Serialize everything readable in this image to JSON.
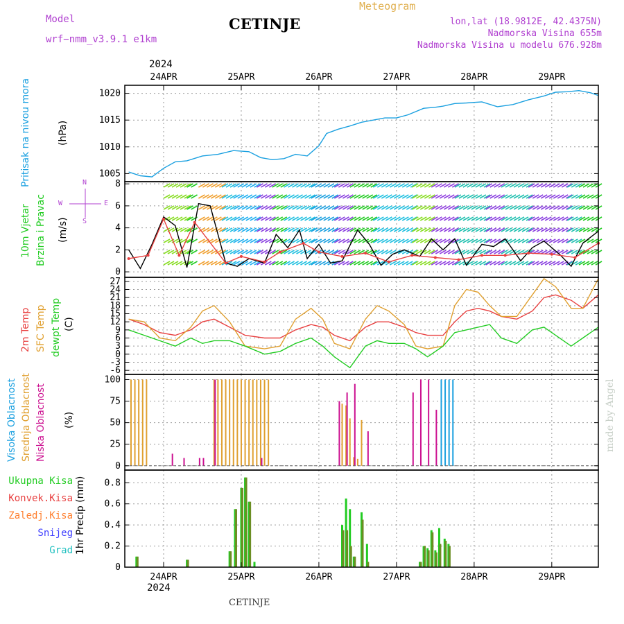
{
  "header": {
    "model_label": "Model",
    "model_name": "wrf−nmm_v3.9.1  e1km",
    "station": "CETINJE",
    "meteogram_label": "Meteogram",
    "lonlat": "lon,lat (18.9812E, 42.4375N)",
    "elevation": "Nadmorska Visina 655m",
    "model_elevation": "Nadmorska Visina u modelu 676.928m",
    "footer_station": "CETINJE",
    "watermark": "made by Angel",
    "year_top": "2024",
    "year_bottom": "2024"
  },
  "colors": {
    "pressure": "#1aa0e0",
    "wind_label": "#22cc22",
    "t2m": "#e84040",
    "sfc": "#e0a030",
    "dewpt": "#22cc22",
    "high_cloud": "#1aa0e0",
    "mid_cloud": "#e0a030",
    "low_cloud": "#cc1090",
    "total_precip": "#22cc22",
    "conv_precip": "#e84040",
    "frozen_precip": "#ff8030",
    "snow": "#4040ff",
    "hail": "#20c0c0",
    "model_label": "#b040d0"
  },
  "chart_data": [
    {
      "type": "line",
      "panel": "pressure",
      "ylabel": "Pritisak na nivou mora",
      "units": "(hPa)",
      "ylim": [
        1003.5,
        1021.5
      ],
      "yticks": [
        1005,
        1010,
        1015,
        1020
      ],
      "x_unit": "days since 2024-04-23 00Z",
      "series": [
        {
          "name": "Pritisak na nivou mora",
          "color": "#1aa0e0",
          "x": [
            0.55,
            0.7,
            0.85,
            1.0,
            1.15,
            1.3,
            1.5,
            1.7,
            1.9,
            2.1,
            2.25,
            2.4,
            2.55,
            2.7,
            2.85,
            3.0,
            3.1,
            3.25,
            3.4,
            3.55,
            3.7,
            3.85,
            4.0,
            4.15,
            4.35,
            4.5,
            4.6,
            4.75,
            4.9,
            5.1,
            5.3,
            5.5,
            5.7,
            5.9,
            6.05,
            6.2,
            6.35,
            6.5,
            6.6
          ],
          "values": [
            1005.3,
            1004.6,
            1004.4,
            1006.0,
            1007.2,
            1007.4,
            1008.3,
            1008.6,
            1009.3,
            1009.1,
            1008.0,
            1007.6,
            1007.8,
            1008.6,
            1008.3,
            1010.2,
            1012.5,
            1013.3,
            1013.9,
            1014.6,
            1015.0,
            1015.4,
            1015.4,
            1016.0,
            1017.2,
            1017.4,
            1017.6,
            1018.1,
            1018.2,
            1018.4,
            1017.5,
            1017.9,
            1018.8,
            1019.5,
            1020.2,
            1020.3,
            1020.5,
            1020.1,
            1019.6
          ]
        }
      ]
    },
    {
      "type": "line",
      "panel": "wind",
      "ylabel": "10m Vjetar",
      "ylabel2": "Brzina i Pravac",
      "units": "(m/s)",
      "compass": {
        "n": "N",
        "w": "W",
        "e": "E",
        "s": "S"
      },
      "ylim": [
        -0.5,
        8.2
      ],
      "yticks": [
        0,
        2,
        4,
        6,
        8
      ],
      "series": [
        {
          "name": "speed",
          "color": "#000000",
          "x": [
            0.55,
            0.7,
            0.85,
            1.0,
            1.15,
            1.3,
            1.45,
            1.6,
            1.8,
            1.95,
            2.1,
            2.3,
            2.45,
            2.6,
            2.75,
            2.85,
            3.0,
            3.15,
            3.3,
            3.5,
            3.65,
            3.8,
            3.95,
            4.1,
            4.3,
            4.45,
            4.6,
            4.75,
            4.9,
            5.1,
            5.25,
            5.4,
            5.6,
            5.75,
            5.9,
            6.1,
            6.25,
            6.4,
            6.6
          ],
          "values": [
            2.0,
            0.3,
            2.5,
            5.0,
            4.2,
            0.4,
            6.2,
            6.0,
            0.8,
            0.5,
            1.2,
            0.8,
            3.4,
            2.2,
            3.8,
            1.2,
            2.5,
            0.8,
            1.0,
            3.8,
            2.5,
            0.6,
            1.6,
            2.0,
            1.4,
            3.0,
            2.0,
            3.0,
            0.6,
            2.5,
            2.3,
            3.0,
            1.0,
            2.2,
            2.8,
            1.6,
            0.5,
            2.6,
            3.7
          ]
        },
        {
          "name": "gust",
          "color": "#e84040",
          "x": [
            0.55,
            0.8,
            1.0,
            1.2,
            1.4,
            1.8,
            2.0,
            2.3,
            2.5,
            2.8,
            3.0,
            3.3,
            3.6,
            3.9,
            4.2,
            4.5,
            4.8,
            5.1,
            5.4,
            5.7,
            6.0,
            6.3,
            6.6
          ],
          "values": [
            1.2,
            1.5,
            4.8,
            1.5,
            4.5,
            0.8,
            1.4,
            0.9,
            1.8,
            2.6,
            1.8,
            1.4,
            1.7,
            0.9,
            1.5,
            1.3,
            1.1,
            1.5,
            1.5,
            1.7,
            1.6,
            1.3,
            2.6
          ]
        }
      ]
    },
    {
      "type": "line",
      "panel": "temperature",
      "ylabels": [
        "2m Temp",
        "SFC Temp",
        "dewpt Temp"
      ],
      "units": "(C)",
      "ylim": [
        -7.5,
        28.5
      ],
      "yticks": [
        -6,
        -3,
        0,
        3,
        6,
        9,
        12,
        15,
        18,
        21,
        24,
        27
      ],
      "series": [
        {
          "name": "2m Temp",
          "color": "#e84040",
          "x": [
            0.55,
            0.75,
            0.95,
            1.15,
            1.35,
            1.5,
            1.65,
            1.85,
            2.05,
            2.3,
            2.5,
            2.7,
            2.9,
            3.05,
            3.2,
            3.4,
            3.6,
            3.75,
            3.9,
            4.1,
            4.25,
            4.4,
            4.6,
            4.75,
            4.9,
            5.05,
            5.2,
            5.35,
            5.55,
            5.75,
            5.9,
            6.05,
            6.25,
            6.4,
            6.6
          ],
          "values": [
            13,
            11,
            8,
            7,
            9,
            12,
            13,
            10,
            7,
            6,
            6,
            9,
            11,
            10,
            7,
            5,
            10,
            12,
            12,
            10,
            8,
            7,
            7,
            12,
            16,
            17,
            16,
            14,
            13,
            16,
            21,
            22,
            20,
            17,
            22
          ]
        },
        {
          "name": "SFC Temp",
          "color": "#e0a030",
          "x": [
            0.55,
            0.75,
            0.95,
            1.15,
            1.35,
            1.5,
            1.65,
            1.85,
            2.05,
            2.3,
            2.5,
            2.7,
            2.9,
            3.05,
            3.2,
            3.4,
            3.6,
            3.75,
            3.9,
            4.1,
            4.25,
            4.4,
            4.6,
            4.75,
            4.9,
            5.05,
            5.2,
            5.35,
            5.55,
            5.75,
            5.9,
            6.05,
            6.25,
            6.4,
            6.6
          ],
          "values": [
            13,
            12,
            6,
            5,
            10,
            16,
            18,
            12,
            3,
            2,
            3,
            13,
            17,
            13,
            4,
            2,
            13,
            18,
            16,
            11,
            3,
            2,
            3,
            18,
            24,
            23,
            18,
            14,
            14,
            22,
            28,
            25,
            17,
            17,
            28
          ]
        },
        {
          "name": "dewpt Temp",
          "color": "#22cc22",
          "x": [
            0.55,
            0.75,
            0.95,
            1.15,
            1.35,
            1.5,
            1.65,
            1.85,
            2.05,
            2.3,
            2.5,
            2.7,
            2.9,
            3.05,
            3.2,
            3.4,
            3.6,
            3.75,
            3.9,
            4.1,
            4.25,
            4.4,
            4.6,
            4.75,
            4.9,
            5.05,
            5.2,
            5.35,
            5.55,
            5.75,
            5.9,
            6.05,
            6.25,
            6.4,
            6.6
          ],
          "values": [
            9,
            7,
            5,
            3,
            6,
            4,
            5,
            5,
            3,
            0,
            1,
            4,
            6,
            3,
            -1,
            -5,
            3,
            5,
            4,
            4,
            2,
            -1,
            3,
            8,
            9,
            10,
            11,
            6,
            4,
            9,
            10,
            7,
            3,
            6,
            10
          ]
        }
      ]
    },
    {
      "type": "bar",
      "panel": "cloud",
      "ylabels": [
        "Visoka Oblacnost",
        "Srednja Oblacnost",
        "Niska Oblacnost"
      ],
      "units": "(%)",
      "ylim": [
        -5,
        106
      ],
      "yticks": [
        0,
        25,
        50,
        75,
        100
      ],
      "series": [
        {
          "name": "Srednja Oblacnost",
          "color": "#e0a030",
          "x": [
            0.58,
            0.63,
            0.68,
            0.73,
            0.78,
            1.65,
            1.7,
            1.75,
            1.8,
            1.85,
            1.9,
            1.95,
            2.0,
            2.05,
            2.1,
            2.15,
            2.2,
            2.25,
            2.3,
            2.35,
            3.3,
            3.35,
            3.4,
            3.45,
            3.5,
            3.55
          ],
          "values": [
            100,
            100,
            100,
            100,
            100,
            100,
            100,
            100,
            100,
            100,
            100,
            100,
            100,
            100,
            100,
            100,
            100,
            100,
            100,
            100,
            72,
            70,
            55,
            10,
            8,
            53
          ]
        },
        {
          "name": "Niska Oblacnost",
          "color": "#cc1090",
          "x": [
            1.1,
            1.25,
            1.45,
            1.5,
            1.65,
            2.25,
            3.25,
            3.35,
            3.45,
            3.62,
            4.2,
            4.3,
            4.4,
            4.5
          ],
          "values": [
            14,
            9,
            9,
            9,
            100,
            9,
            75,
            85,
            95,
            40,
            85,
            100,
            100,
            65
          ]
        },
        {
          "name": "Visoka Oblacnost",
          "color": "#1aa0e0",
          "x": [
            4.55,
            4.6,
            4.65,
            4.7
          ],
          "values": [
            100,
            100,
            100,
            100
          ]
        }
      ]
    },
    {
      "type": "bar",
      "panel": "precip",
      "ylabel": "1hr Precip (mm)",
      "legend": [
        "Ukupna Kisa",
        "Konvek.Kisa",
        "Zaledj.Kisa",
        "Snijeg",
        "Grad"
      ],
      "ylim": [
        0,
        0.92
      ],
      "yticks": [
        0,
        0.2,
        0.4,
        0.6,
        0.8
      ],
      "series": [
        {
          "name": "Ukupna Kisa",
          "color": "#22cc22",
          "x": [
            0.65,
            1.3,
            1.85,
            1.92,
            2.0,
            2.05,
            2.1,
            2.17,
            3.3,
            3.35,
            3.4,
            3.45,
            3.55,
            3.62,
            4.3,
            4.35,
            4.4,
            4.45,
            4.5,
            4.55,
            4.62,
            4.67
          ],
          "values": [
            0.1,
            0.07,
            0.15,
            0.55,
            0.75,
            0.85,
            0.62,
            0.05,
            0.4,
            0.65,
            0.55,
            0.1,
            0.52,
            0.22,
            0.05,
            0.2,
            0.18,
            0.35,
            0.16,
            0.37,
            0.27,
            0.22
          ]
        },
        {
          "name": "Konvek.Kisa",
          "color": "#6b8e23",
          "x": [
            0.65,
            1.3,
            1.85,
            1.92,
            2.0,
            2.05,
            2.1,
            3.3,
            3.35,
            3.4,
            3.45,
            3.55,
            3.62,
            4.3,
            4.35,
            4.4,
            4.45,
            4.5,
            4.55,
            4.62,
            4.67
          ],
          "values": [
            0.1,
            0.07,
            0.15,
            0.55,
            0.75,
            0.85,
            0.62,
            0.35,
            0.35,
            0.2,
            0.1,
            0.45,
            0.05,
            0.05,
            0.2,
            0.16,
            0.33,
            0.14,
            0.22,
            0.25,
            0.2
          ]
        }
      ]
    }
  ],
  "axis": {
    "top_dates": [
      "24APR",
      "25APR",
      "26APR",
      "27APR",
      "28APR",
      "29APR"
    ],
    "bottom_dates": [
      "24APR",
      "25APR",
      "26APR",
      "27APR",
      "28APR",
      "29APR"
    ],
    "date_positions": [
      1,
      2,
      3,
      4,
      5,
      6
    ],
    "xlim": [
      0.5,
      6.6
    ]
  }
}
